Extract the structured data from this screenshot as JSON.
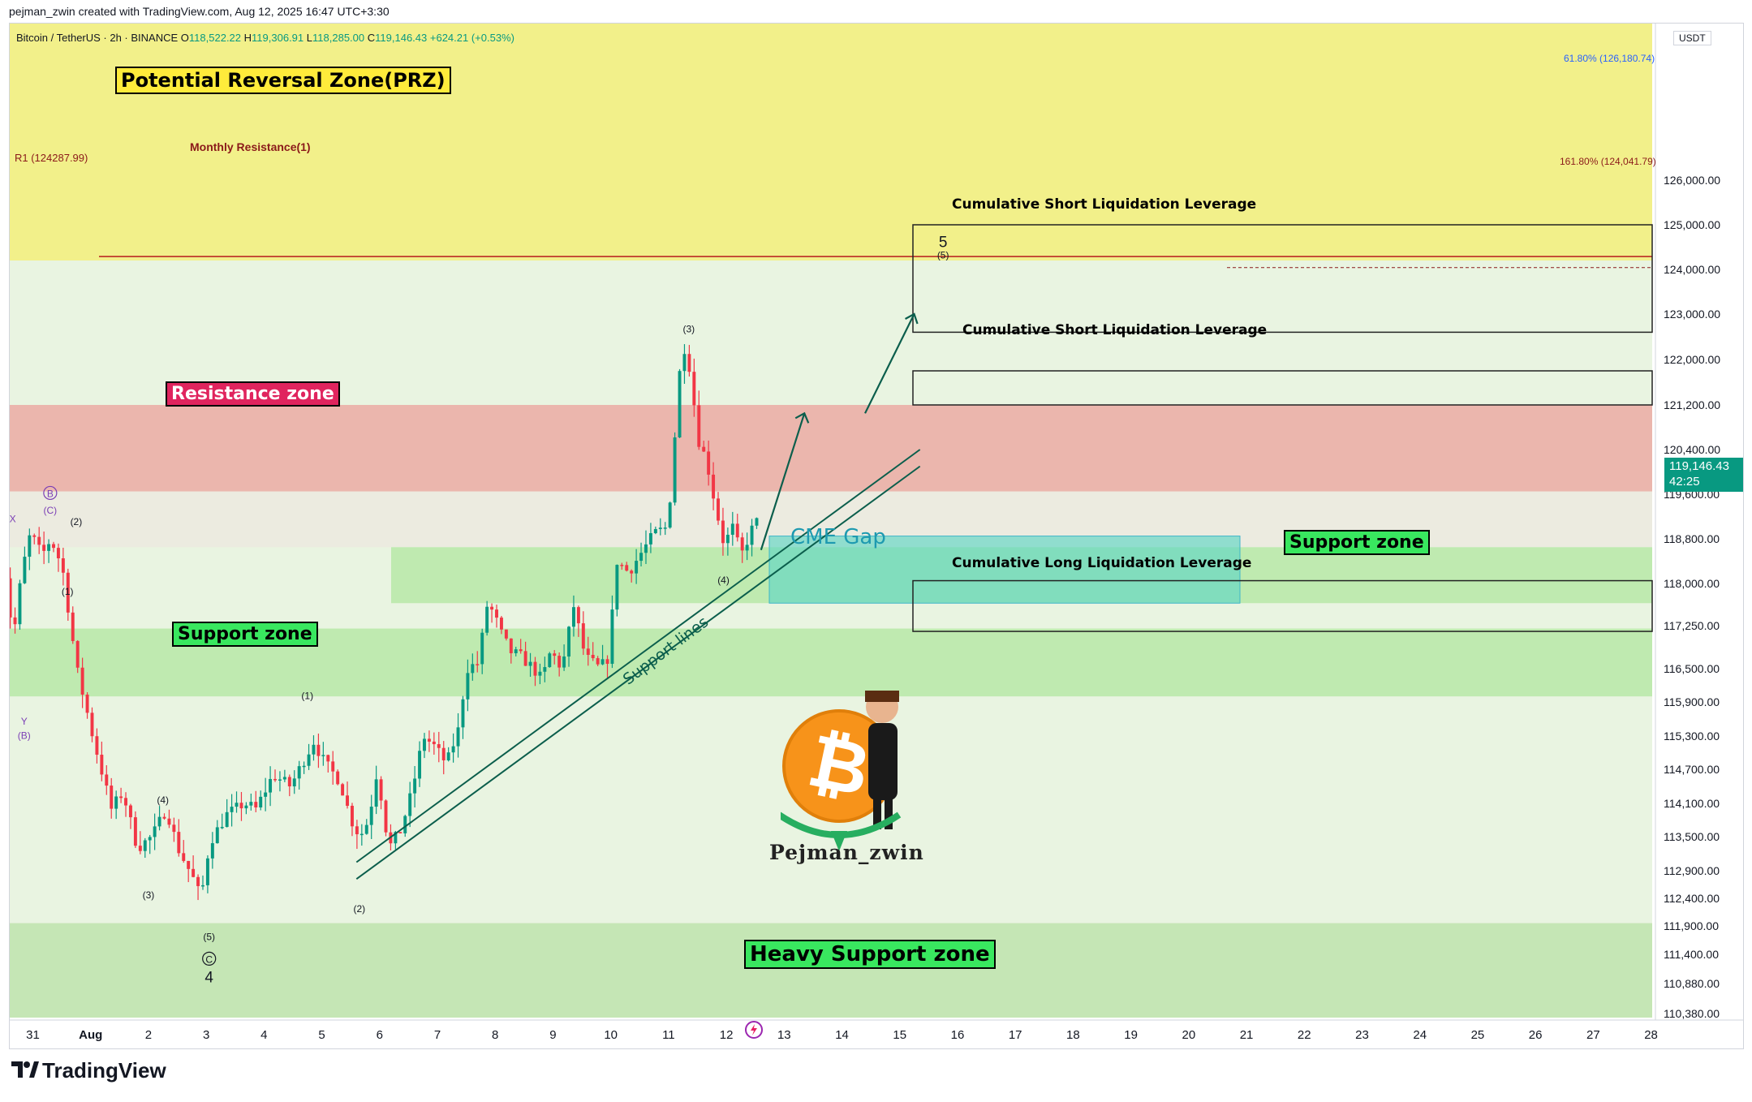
{
  "header": {
    "credit": "pejman_zwin created with TradingView.com, Aug 12, 2025 16:47 UTC+3:30"
  },
  "symbol_bar": {
    "symbol": "Bitcoin / TetherUS · 2h · BINANCE",
    "open_label": "O",
    "open": "118,522.22",
    "high_label": "H",
    "high": "119,306.91",
    "low_label": "L",
    "low": "118,285.00",
    "close_label": "C",
    "close": "119,146.43",
    "change": "+624.21 (+0.53%)"
  },
  "price_axis": {
    "unit": "USDT",
    "last_price": "119,146.43",
    "countdown": "42:25"
  },
  "labels": {
    "prz": "Potential Reversal Zone(PRZ)",
    "resistance": "Resistance zone",
    "support_left": "Support zone",
    "support_right": "Support zone",
    "heavy_support": "Heavy Support zone",
    "monthly_resistance": "Monthly Resistance(1)",
    "r1": "R1 (124287.99)",
    "fib_618": "61.80% (126,180.74)",
    "fib_1618": "161.80% (124,041.79)",
    "cme_gap": "CME Gap",
    "support_lines": "Support lines",
    "short_liq_1": "Cumulative Short Liquidation Leverage",
    "short_liq_2": "Cumulative Short Liquidation Leverage",
    "long_liq": "Cumulative Long Liquidation Leverage",
    "watermark": "Pejman_zwin",
    "logo": "TradingView"
  },
  "colors": {
    "bull": "#089981",
    "bear": "#f23645",
    "prz_zone": "#f2f08a",
    "resistance_zone": "#ebb6ad",
    "support_zone": "#bfeab0",
    "heavy_support_zone": "#c5e6b5",
    "cme_gap": "#5fd6c4",
    "trend_line": "#0b5e4c"
  },
  "chart_data": {
    "type": "candlestick",
    "symbol": "BTCUSDT",
    "interval": "2h",
    "exchange": "BINANCE",
    "ylim": [
      110380,
      126000
    ],
    "price_ticks": [
      110380,
      110880,
      111400,
      111900,
      112400,
      112900,
      113500,
      114100,
      114700,
      115300,
      115900,
      116500,
      117250,
      118000,
      118800,
      119600,
      120400,
      121200,
      122000,
      123000,
      124000,
      125000,
      126000
    ],
    "price_tick_labels": [
      "110,380.00",
      "110,880.00",
      "111,400.00",
      "111,900.00",
      "112,400.00",
      "112,900.00",
      "113,500.00",
      "114,100.00",
      "114,700.00",
      "115,300.00",
      "115,900.00",
      "116,500.00",
      "117,250.00",
      "118,000.00",
      "118,800.00",
      "119,600.00",
      "120,400.00",
      "121,200.00",
      "122,000.00",
      "123,000.00",
      "124,000.00",
      "125,000.00",
      "126,000.00"
    ],
    "x_ticks": [
      "31",
      "Aug",
      "2",
      "3",
      "4",
      "5",
      "6",
      "7",
      "8",
      "9",
      "10",
      "11",
      "12",
      "13",
      "14",
      "15",
      "16",
      "17",
      "18",
      "19",
      "20",
      "21",
      "22",
      "23",
      "24",
      "25",
      "26",
      "27",
      "28"
    ],
    "x_tick_days": [
      31,
      32,
      33,
      34,
      35,
      36,
      37,
      38,
      39,
      40,
      41,
      42,
      43,
      44,
      45,
      46,
      47,
      48,
      49,
      50,
      51,
      52,
      53,
      54,
      55,
      56,
      57,
      58,
      59
    ],
    "price_path_knots": [
      [
        30.4,
        118600
      ],
      [
        30.55,
        118300
      ],
      [
        30.7,
        117000
      ],
      [
        30.85,
        118200
      ],
      [
        31.0,
        118900
      ],
      [
        31.2,
        118500
      ],
      [
        31.35,
        118800
      ],
      [
        31.55,
        118300
      ],
      [
        31.8,
        116500
      ],
      [
        32.1,
        115200
      ],
      [
        32.4,
        114000
      ],
      [
        32.6,
        114300
      ],
      [
        32.85,
        113300
      ],
      [
        33.1,
        113500
      ],
      [
        33.35,
        114000
      ],
      [
        33.55,
        113300
      ],
      [
        33.8,
        112800
      ],
      [
        33.95,
        112400
      ],
      [
        34.1,
        113400
      ],
      [
        34.4,
        113900
      ],
      [
        34.7,
        114100
      ],
      [
        34.9,
        114000
      ],
      [
        35.2,
        114600
      ],
      [
        35.5,
        114400
      ],
      [
        35.75,
        114900
      ],
      [
        35.9,
        115200
      ],
      [
        36.1,
        114800
      ],
      [
        36.35,
        114500
      ],
      [
        36.55,
        113800
      ],
      [
        36.7,
        113500
      ],
      [
        36.85,
        113800
      ],
      [
        37.0,
        114700
      ],
      [
        37.2,
        113300
      ],
      [
        37.4,
        113600
      ],
      [
        37.6,
        114300
      ],
      [
        37.8,
        115300
      ],
      [
        38.0,
        115100
      ],
      [
        38.2,
        114800
      ],
      [
        38.4,
        115400
      ],
      [
        38.55,
        116500
      ],
      [
        38.75,
        116600
      ],
      [
        38.9,
        117600
      ],
      [
        39.0,
        117500
      ],
      [
        39.15,
        117100
      ],
      [
        39.3,
        116800
      ],
      [
        39.5,
        116700
      ],
      [
        39.7,
        116500
      ],
      [
        39.85,
        116300
      ],
      [
        40.0,
        116800
      ],
      [
        40.2,
        116500
      ],
      [
        40.4,
        117600
      ],
      [
        40.6,
        116700
      ],
      [
        40.85,
        116500
      ],
      [
        41.0,
        116700
      ],
      [
        41.15,
        118400
      ],
      [
        41.35,
        118200
      ],
      [
        41.6,
        118600
      ],
      [
        41.8,
        118900
      ],
      [
        42.0,
        119000
      ],
      [
        42.1,
        119800
      ],
      [
        42.2,
        121500
      ],
      [
        42.3,
        122300
      ],
      [
        42.42,
        121800
      ],
      [
        42.55,
        120600
      ],
      [
        42.7,
        120200
      ],
      [
        42.85,
        119400
      ],
      [
        43.0,
        118700
      ],
      [
        43.15,
        119000
      ],
      [
        43.3,
        118500
      ],
      [
        43.45,
        118900
      ],
      [
        43.55,
        119100
      ]
    ],
    "zones": [
      {
        "name": "Potential Reversal Zone(PRZ)",
        "low": 124200,
        "high": 126300
      },
      {
        "name": "Resistance zone",
        "low": 119650,
        "high": 121200
      },
      {
        "name": "Support zone",
        "low": 116000,
        "high": 117200
      },
      {
        "name": "Support zone",
        "low": 117650,
        "high": 118650
      },
      {
        "name": "CME Gap",
        "low": 117650,
        "high": 118850
      },
      {
        "name": "Heavy Support zone",
        "low": 110380,
        "high": 111950
      }
    ],
    "levels": [
      {
        "name": "R1 (124287.99)",
        "value": 124287.99
      },
      {
        "name": "61.80% (126,180.74)",
        "value": 126180.74
      },
      {
        "name": "161.80% (124,041.79)",
        "value": 124041.79
      }
    ],
    "liquidation_boxes": [
      {
        "label": "Cumulative Short Liquidation Leverage",
        "low": 122600,
        "high": 125000
      },
      {
        "label": "Cumulative Short Liquidation Leverage",
        "low": 121200,
        "high": 121800
      },
      {
        "label": "Cumulative Long Liquidation Leverage",
        "low": 117150,
        "high": 118050
      }
    ],
    "wave_labels": [
      {
        "text": "(2)",
        "x": 31.75,
        "y": 119050
      },
      {
        "text": "(1)",
        "x": 31.6,
        "y": 117800
      },
      {
        "text": "(3)",
        "x": 33.0,
        "y": 112400
      },
      {
        "text": "(4)",
        "x": 33.25,
        "y": 114100
      },
      {
        "text": "(5)",
        "x": 34.05,
        "y": 111650
      },
      {
        "text": "C",
        "x": 34.05,
        "y": 111250
      },
      {
        "text": "4",
        "x": 34.05,
        "y": 110900
      },
      {
        "text": "(1)",
        "x": 35.75,
        "y": 115950
      },
      {
        "text": "(2)",
        "x": 36.65,
        "y": 112150
      },
      {
        "text": "(3)",
        "x": 42.35,
        "y": 122600
      },
      {
        "text": "(4)",
        "x": 42.95,
        "y": 118000
      },
      {
        "text": "5",
        "x": 46.75,
        "y": 124500
      },
      {
        "text": "(5)",
        "x": 46.75,
        "y": 124250
      },
      {
        "text": "X",
        "x": 30.65,
        "y": 119100
      },
      {
        "text": "B",
        "x": 31.3,
        "y": 119550
      },
      {
        "text": "(C)",
        "x": 31.3,
        "y": 119250
      },
      {
        "text": "Y",
        "x": 30.85,
        "y": 115500
      },
      {
        "text": "(B)",
        "x": 30.85,
        "y": 115250
      }
    ]
  }
}
